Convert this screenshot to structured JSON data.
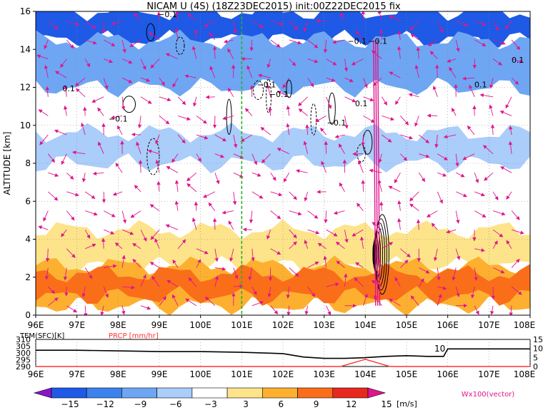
{
  "title": "NICAM U (4S) (18Z23DEC2015) init:00Z22DEC2015 fix",
  "colorbar": {
    "labels": [
      "−15",
      "−12",
      "−9",
      "−6",
      "−3",
      "3",
      "6",
      "9",
      "12",
      "15"
    ],
    "unit": "[m/s]",
    "colors": [
      "#8a16c8",
      "#1e5ae6",
      "#3c82ee",
      "#6ea6f4",
      "#aacdfa",
      "#ffffff",
      "#fde48a",
      "#fdb030",
      "#fa6e1a",
      "#e8281e",
      "#b40000"
    ]
  },
  "vector_label": "Wx100(vector)",
  "chart_data": [
    {
      "type": "heatmap",
      "title": "NICAM U (4S) (18Z23DEC2015) init:00Z22DEC2015 fix",
      "ylabel": "ALTITUDE [km]",
      "x_ticks": [
        "96E",
        "97E",
        "98E",
        "99E",
        "100E",
        "101E",
        "102E",
        "103E",
        "104E",
        "105E",
        "106E",
        "107E",
        "108E"
      ],
      "xlim": [
        96,
        108
      ],
      "y_ticks": [
        "0",
        "2",
        "4",
        "6",
        "8",
        "10",
        "12",
        "14",
        "16"
      ],
      "ylim": [
        0,
        16
      ],
      "grid": true,
      "marker_line_lon": 101,
      "contour_labels": [
        "−0.1",
        "−0.1",
        "−0.1",
        "−0.1",
        "−0.1",
        "0.1",
        "0.1",
        "−0.1",
        "−0.1",
        "0.1",
        "0.1"
      ],
      "layers": [
        {
          "name": "U",
          "value": -13,
          "bottom": 14.5,
          "top": 16
        },
        {
          "name": "U",
          "value": -7,
          "bottom": 12,
          "top": 14.5
        },
        {
          "name": "U",
          "value": -4,
          "bottom": 8,
          "top": 9.6
        },
        {
          "name": "U",
          "value": 4,
          "bottom": 2.6,
          "top": 4.5
        },
        {
          "name": "U",
          "value": 7,
          "bottom": 0.5,
          "top": 2.6
        },
        {
          "name": "U",
          "value": 10,
          "bottom": 1,
          "top": 2.2
        }
      ]
    },
    {
      "type": "line",
      "series": [
        {
          "name": "TEM(SFC)[K]",
          "color": "#000000",
          "x": [
            96,
            97,
            98,
            99,
            100,
            101,
            102,
            102.5,
            103,
            103.5,
            104,
            104.5,
            105,
            105.5,
            105.9,
            106,
            106.5,
            107,
            108
          ],
          "values": [
            302,
            302,
            301.5,
            301,
            301,
            300.5,
            299.5,
            297,
            296,
            296,
            296.5,
            297.5,
            298,
            297.5,
            297.5,
            303,
            303,
            303,
            303
          ]
        },
        {
          "name": "PRCP [mm/hr]",
          "color": "#ff3333",
          "x": [
            96,
            103.4,
            103.7,
            104,
            104.3,
            104.6,
            108
          ],
          "values": [
            0,
            0,
            2,
            4,
            2,
            0,
            0
          ]
        }
      ],
      "left_axis": {
        "ticks": [
          "290",
          "295",
          "300",
          "305",
          "310"
        ],
        "ylim": [
          290,
          310
        ]
      },
      "right_axis": {
        "ticks": [
          "0",
          "5",
          "10",
          "15"
        ],
        "ylim": [
          0,
          15
        ]
      },
      "x_ticks": [
        "96E",
        "97E",
        "98E",
        "99E",
        "100E",
        "101E",
        "102E",
        "103E",
        "104E",
        "105E",
        "106E",
        "107E",
        "108E"
      ],
      "annotation": "10"
    }
  ]
}
